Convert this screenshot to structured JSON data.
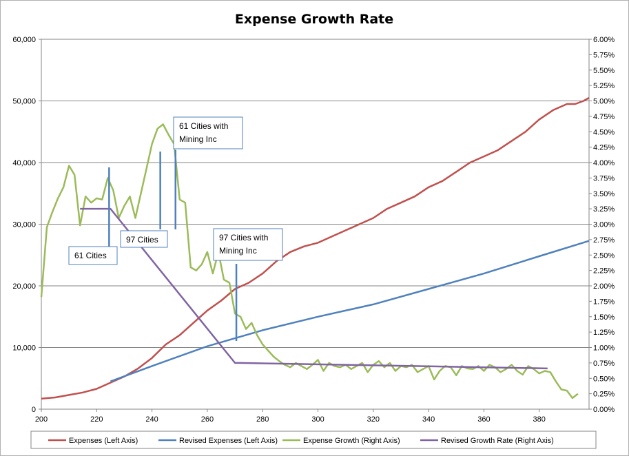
{
  "chart_data": {
    "type": "line",
    "title": "Expense Growth Rate",
    "x_ticks": [
      200,
      220,
      240,
      260,
      280,
      300,
      320,
      340,
      360,
      380
    ],
    "xlim": [
      200,
      398
    ],
    "y_left_ticks": [
      "0",
      "10,000",
      "20,000",
      "30,000",
      "40,000",
      "50,000",
      "60,000"
    ],
    "y_left_lim": [
      0,
      60000
    ],
    "y_right_ticks": [
      "0.00%",
      "0.25%",
      "0.50%",
      "0.75%",
      "1.00%",
      "1.25%",
      "1.50%",
      "1.75%",
      "2.00%",
      "2.25%",
      "2.50%",
      "2.75%",
      "3.00%",
      "3.25%",
      "3.50%",
      "3.75%",
      "4.00%",
      "4.25%",
      "4.50%",
      "4.75%",
      "5.00%",
      "5.25%",
      "5.50%",
      "5.75%",
      "6.00%"
    ],
    "y_right_lim": [
      0,
      6
    ],
    "grid": "horizontal",
    "legend_position": "bottom",
    "series": [
      {
        "name": "Expenses (Left Axis)",
        "axis": "left",
        "color": "#c0504d",
        "x": [
          200,
          205,
          210,
          215,
          220,
          225,
          230,
          235,
          240,
          245,
          250,
          255,
          260,
          265,
          270,
          275,
          280,
          285,
          290,
          295,
          300,
          305,
          310,
          315,
          320,
          325,
          330,
          335,
          340,
          345,
          350,
          355,
          360,
          365,
          370,
          375,
          380,
          385,
          390,
          393,
          396,
          398
        ],
        "y": [
          1700,
          1900,
          2300,
          2700,
          3300,
          4300,
          5300,
          6600,
          8300,
          10500,
          12000,
          14000,
          16000,
          17600,
          19500,
          20500,
          22000,
          24000,
          25500,
          26400,
          27000,
          28000,
          29000,
          30000,
          31000,
          32500,
          33500,
          34500,
          36000,
          37000,
          38500,
          40000,
          41000,
          42000,
          43500,
          45000,
          47000,
          48500,
          49500,
          49500,
          50000,
          50500
        ]
      },
      {
        "name": "Revised Expenses (Left Axis)",
        "axis": "left",
        "color": "#4f81bd",
        "x": [
          225,
          240,
          260,
          280,
          300,
          320,
          340,
          360,
          380,
          398
        ],
        "y": [
          4500,
          7000,
          10200,
          12800,
          15000,
          17000,
          19500,
          22000,
          24800,
          27300
        ]
      },
      {
        "name": "Expense Growth (Right Axis)",
        "axis": "right",
        "color": "#9bbb59",
        "x": [
          200,
          202,
          204,
          206,
          208,
          210,
          212,
          214,
          216,
          218,
          220,
          222,
          224,
          226,
          228,
          230,
          232,
          234,
          236,
          238,
          240,
          242,
          244,
          246,
          248,
          250,
          252,
          254,
          256,
          258,
          260,
          262,
          264,
          266,
          268,
          270,
          272,
          274,
          276,
          278,
          280,
          282,
          284,
          286,
          288,
          290,
          292,
          294,
          296,
          298,
          300,
          302,
          304,
          306,
          308,
          310,
          312,
          314,
          316,
          318,
          320,
          322,
          324,
          326,
          328,
          330,
          332,
          334,
          336,
          338,
          340,
          342,
          344,
          346,
          348,
          350,
          352,
          354,
          356,
          358,
          360,
          362,
          364,
          366,
          368,
          370,
          372,
          374,
          376,
          378,
          380,
          382,
          384,
          386,
          388,
          390,
          392,
          394
        ],
        "y": [
          1.82,
          2.95,
          3.2,
          3.42,
          3.6,
          3.95,
          3.8,
          2.98,
          3.45,
          3.35,
          3.42,
          3.4,
          3.75,
          3.55,
          3.1,
          3.3,
          3.45,
          3.1,
          3.5,
          3.9,
          4.3,
          4.55,
          4.62,
          4.45,
          4.3,
          3.4,
          3.35,
          2.3,
          2.25,
          2.35,
          2.55,
          2.2,
          2.55,
          2.1,
          2.05,
          1.55,
          1.5,
          1.3,
          1.4,
          1.2,
          1.05,
          0.95,
          0.85,
          0.78,
          0.72,
          0.68,
          0.75,
          0.7,
          0.65,
          0.72,
          0.8,
          0.62,
          0.75,
          0.7,
          0.68,
          0.72,
          0.65,
          0.7,
          0.75,
          0.6,
          0.72,
          0.78,
          0.68,
          0.75,
          0.62,
          0.7,
          0.68,
          0.72,
          0.6,
          0.65,
          0.7,
          0.48,
          0.62,
          0.7,
          0.68,
          0.55,
          0.7,
          0.66,
          0.65,
          0.7,
          0.62,
          0.72,
          0.68,
          0.6,
          0.65,
          0.72,
          0.62,
          0.56,
          0.7,
          0.65,
          0.58,
          0.62,
          0.6,
          0.45,
          0.32,
          0.3,
          0.18,
          0.25
        ]
      },
      {
        "name": "Revised Growth Rate (Right Axis)",
        "axis": "right",
        "color": "#8064a2",
        "x": [
          214,
          225,
          270,
          272,
          383
        ],
        "y": [
          3.25,
          3.25,
          0.75,
          0.75,
          0.66
        ]
      }
    ],
    "annotations": [
      {
        "text": "61 Cities",
        "x": 224.5
      },
      {
        "text": "97 Cities",
        "x": 243
      },
      {
        "text": "61 Cities with Mining Inc",
        "x": 248.5
      },
      {
        "text": "97 Cities with Mining Inc",
        "x": 270.5
      }
    ]
  }
}
